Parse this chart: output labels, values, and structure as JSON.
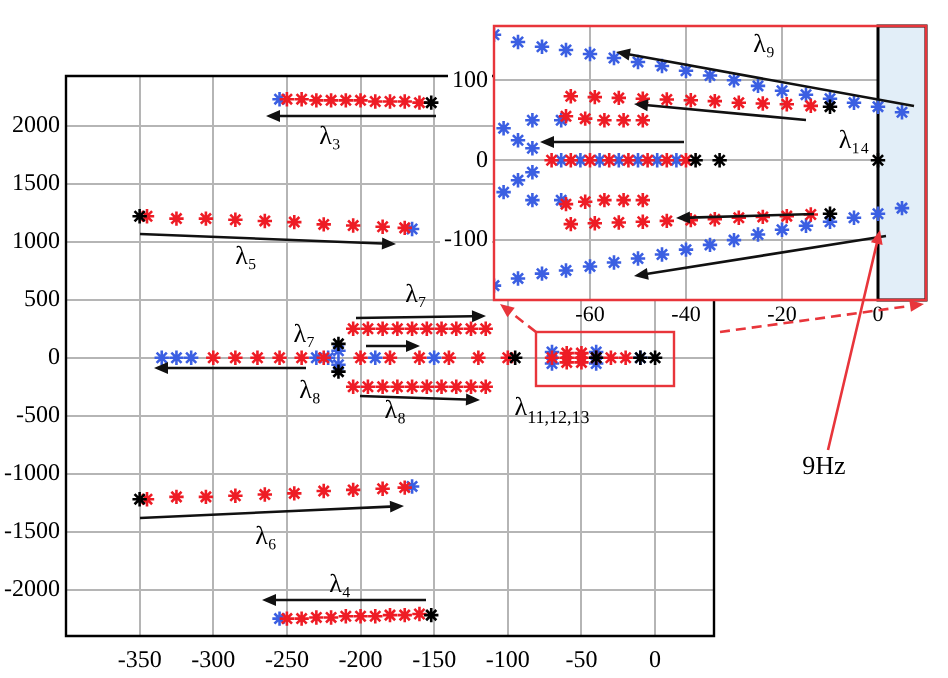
{
  "chart_data": [
    {
      "type": "scatter",
      "xlim": [
        -400,
        40
      ],
      "ylim": [
        -2400,
        2430
      ],
      "xticks": [
        -350,
        -300,
        -250,
        -200,
        -150,
        -100,
        -50,
        0
      ],
      "yticks": [
        -2000,
        -1500,
        -1000,
        -500,
        0,
        500,
        1000,
        1500,
        2000
      ],
      "grid": true,
      "legend": false,
      "marker": "cross",
      "series": [
        {
          "color": "#000000",
          "x": [
            -152,
            -350,
            -350,
            -152,
            -215,
            -215,
            -95,
            -40,
            -10,
            0
          ],
          "values": [
            2200,
            1220,
            -1220,
            -2220,
            120,
            -120,
            0,
            0,
            0,
            0
          ]
        },
        {
          "color": "#ee1c25",
          "x": [
            -250,
            -240,
            -230,
            -220,
            -210,
            -200,
            -190,
            -180,
            -170,
            -160,
            -345,
            -325,
            -305,
            -285,
            -265,
            -245,
            -225,
            -205,
            -185,
            -170,
            -345,
            -325,
            -305,
            -285,
            -265,
            -245,
            -225,
            -205,
            -185,
            -170,
            -250,
            -240,
            -230,
            -220,
            -210,
            -200,
            -190,
            -180,
            -170,
            -160,
            -205,
            -195,
            -185,
            -175,
            -165,
            -155,
            -145,
            -135,
            -125,
            -115,
            -205,
            -195,
            -185,
            -175,
            -165,
            -155,
            -145,
            -135,
            -125,
            -115,
            -300,
            -285,
            -270,
            -255,
            -240,
            -225,
            -200,
            -180,
            -160,
            -140,
            -120,
            -100,
            -70,
            -60,
            -50,
            -40,
            -30,
            -20,
            -60,
            -50,
            -60,
            -50
          ],
          "values": [
            2230,
            2230,
            2220,
            2220,
            2220,
            2220,
            2210,
            2210,
            2210,
            2200,
            1220,
            1200,
            1200,
            1190,
            1180,
            1170,
            1150,
            1140,
            1130,
            1120,
            -1220,
            -1200,
            -1200,
            -1190,
            -1180,
            -1170,
            -1150,
            -1140,
            -1130,
            -1120,
            -2250,
            -2250,
            -2240,
            -2240,
            -2230,
            -2230,
            -2230,
            -2220,
            -2220,
            -2210,
            250,
            250,
            250,
            250,
            250,
            250,
            250,
            250,
            250,
            250,
            -250,
            -250,
            -250,
            -250,
            -250,
            -250,
            -250,
            -250,
            -250,
            -250,
            0,
            0,
            0,
            0,
            0,
            0,
            0,
            0,
            0,
            0,
            0,
            0,
            0,
            0,
            0,
            0,
            0,
            0,
            40,
            40,
            -40,
            -40
          ]
        },
        {
          "color": "#3b5fe2",
          "x": [
            -255,
            -165,
            -165,
            -255,
            -335,
            -325,
            -315,
            -230,
            -215,
            -215,
            -222,
            -190,
            -150,
            -70,
            -70,
            -40,
            -40,
            -10
          ],
          "values": [
            2230,
            1110,
            -1110,
            -2250,
            0,
            0,
            0,
            0,
            60,
            -60,
            0,
            0,
            0,
            50,
            -50,
            50,
            -50,
            0
          ]
        }
      ],
      "annotations": [
        "λ₃",
        "λ₅",
        "λ₇",
        {
          "text": "λ₇",
          "x": -215,
          "y": 120
        },
        "λ₈",
        {
          "text": "λ₈",
          "x": -175,
          "y": -250
        },
        "λ₆",
        "λ₄",
        "λ$_{11,12,13}$",
        "9Hz"
      ]
    },
    {
      "type": "scatter",
      "xlim": [
        -80,
        10
      ],
      "ylim": [
        -175,
        168
      ],
      "xticks": [
        -60,
        -40,
        -20,
        0
      ],
      "yticks": [
        -100,
        0,
        100
      ],
      "grid": true,
      "legend": false,
      "marker": "cross",
      "bands": [
        {
          "axis": "x",
          "from": 0,
          "to": 10,
          "color": "#e2eef8"
        }
      ],
      "series": [
        {
          "color": "#000000",
          "x": [
            -10,
            -10,
            -38,
            -33,
            0
          ],
          "values": [
            67,
            -67,
            0,
            0,
            0
          ]
        },
        {
          "color": "#ee1c25",
          "x": [
            -64,
            -59,
            -54,
            -49,
            -44,
            -39,
            -34,
            -29,
            -24,
            -19,
            -14,
            -65,
            -61,
            -57,
            -53,
            -49,
            -64,
            -59,
            -54,
            -49,
            -44,
            -39,
            -34,
            -29,
            -24,
            -19,
            -14,
            -65,
            -61,
            -57,
            -53,
            -49,
            -68,
            -64,
            -60,
            -56,
            -52,
            -48,
            -44,
            -40
          ],
          "values": [
            80,
            79,
            78,
            77,
            76,
            75,
            74,
            72,
            71,
            70,
            68,
            55,
            52,
            50,
            50,
            50,
            -80,
            -79,
            -78,
            -77,
            -76,
            -75,
            -74,
            -72,
            -71,
            -70,
            -68,
            -55,
            -52,
            -50,
            -50,
            -50,
            0,
            0,
            0,
            0,
            0,
            0,
            0,
            0
          ]
        },
        {
          "color": "#3b5fe2",
          "x": [
            -80,
            -75,
            -70,
            -65,
            -60,
            -55,
            -50,
            -45,
            -40,
            -35,
            -30,
            -25,
            -20,
            -15,
            -10,
            -5,
            0,
            5,
            -80,
            -75,
            -70,
            -65,
            -60,
            -55,
            -50,
            -45,
            -40,
            -35,
            -30,
            -25,
            -20,
            -15,
            -10,
            -5,
            0,
            5,
            -66,
            -62,
            -58,
            -54,
            -50,
            -46,
            -42,
            -78,
            -75,
            -72,
            -72,
            -75,
            -78,
            -72,
            -66,
            -72,
            -66
          ],
          "values": [
            157,
            148,
            142,
            138,
            133,
            128,
            123,
            118,
            112,
            106,
            100,
            93,
            87,
            82,
            77,
            72,
            67,
            60,
            -157,
            -148,
            -142,
            -138,
            -133,
            -128,
            -123,
            -118,
            -112,
            -106,
            -100,
            -93,
            -87,
            -82,
            -77,
            -72,
            -67,
            -60,
            0,
            0,
            0,
            0,
            0,
            0,
            0,
            40,
            25,
            15,
            -15,
            -25,
            -40,
            50,
            50,
            -50,
            -50
          ]
        }
      ],
      "annotations": [
        "λ₉",
        {
          "text": "λ₁₄",
          "x": 0,
          "y": 0
        }
      ]
    }
  ]
}
